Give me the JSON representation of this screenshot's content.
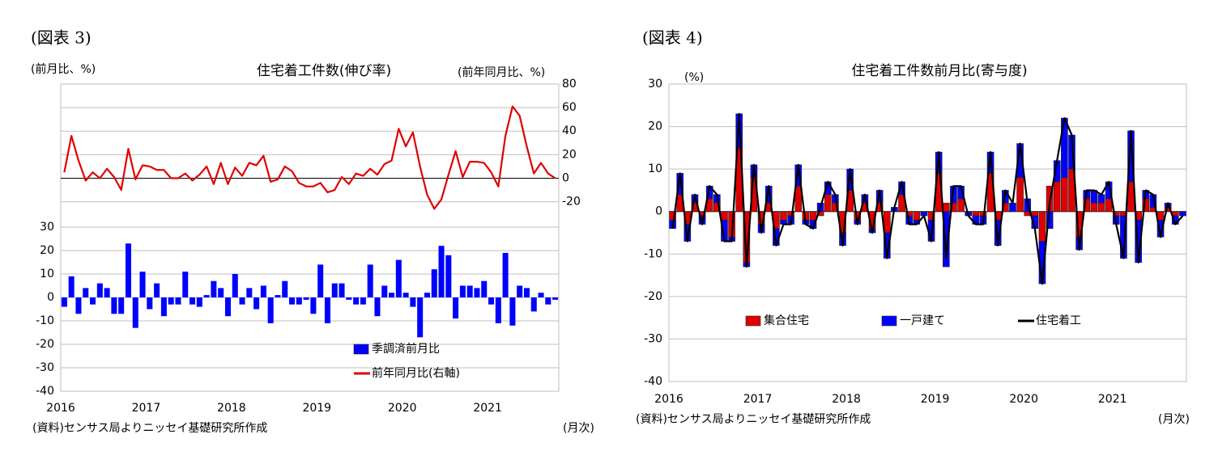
{
  "chart_data": [
    {
      "type": "bar",
      "figure_label": "(図表 3)",
      "title": "住宅着工件数(伸び率)",
      "ylabel": "(前月比、%)",
      "y2label": "(前年同月比、%)",
      "source": "(資料)センサス局よりニッセイ基礎研究所作成",
      "xunit": "(月次)",
      "categories": [
        "2016",
        null,
        null,
        null,
        null,
        null,
        null,
        null,
        null,
        null,
        null,
        null,
        "2017",
        null,
        null,
        null,
        null,
        null,
        null,
        null,
        null,
        null,
        null,
        null,
        "2018",
        null,
        null,
        null,
        null,
        null,
        null,
        null,
        null,
        null,
        null,
        null,
        "2019",
        null,
        null,
        null,
        null,
        null,
        null,
        null,
        null,
        null,
        null,
        null,
        "2020",
        null,
        null,
        null,
        null,
        null,
        null,
        null,
        null,
        null,
        null,
        null,
        "2021",
        null,
        null,
        null,
        null,
        null,
        null,
        null,
        null,
        null
      ],
      "ylim": [
        -40,
        91
      ],
      "yticks": [
        -40,
        -30,
        -20,
        -10,
        0,
        10,
        20,
        30
      ],
      "y2lim": [
        -181,
        80
      ],
      "y2ticks": [
        -20,
        0,
        20,
        40,
        60,
        80
      ],
      "grid": true,
      "zero_line": "y2",
      "legend": "lower right",
      "series": [
        {
          "name": "季調済前月比",
          "type": "bar",
          "color": "#0000ff",
          "values": [
            -4,
            9,
            -7,
            4,
            -3,
            6,
            4,
            -7,
            -7,
            23,
            -13,
            11,
            -5,
            6,
            -8,
            -3,
            -3,
            11,
            -3,
            -4,
            1,
            7,
            4,
            -8,
            10,
            -3,
            4,
            -5,
            5,
            -11,
            1,
            7,
            -3,
            -3,
            -1,
            -7,
            14,
            -11,
            6,
            6,
            -1,
            -3,
            -3,
            14,
            -8,
            5,
            2,
            16,
            2,
            -4,
            -17,
            2,
            12,
            22,
            18,
            -9,
            5,
            5,
            4,
            7,
            -3,
            -11,
            19,
            -12,
            5,
            4,
            -6,
            2,
            -3,
            -1
          ]
        },
        {
          "name": "前年同月比(右軸)",
          "type": "line",
          "axis": "y2",
          "color": "#e00000",
          "values": [
            5,
            36,
            15,
            -2,
            5,
            0,
            8,
            1,
            -10,
            25,
            -1,
            11,
            10,
            7,
            7,
            0,
            0,
            4,
            -2,
            3,
            10,
            -5,
            13,
            -5,
            9,
            2,
            13,
            11,
            19,
            -3,
            -1,
            10,
            6,
            -4,
            -7,
            -7,
            -4,
            -12,
            -10,
            1,
            -5,
            4,
            2,
            8,
            3,
            12,
            15,
            42,
            27,
            39,
            10,
            -14,
            -26,
            -18,
            3,
            23,
            1,
            14,
            14,
            13,
            5,
            -7,
            36,
            61,
            53,
            27,
            4,
            13,
            4,
            0
          ]
        }
      ]
    },
    {
      "type": "bar",
      "figure_label": "(図表 4)",
      "title": "住宅着工件数前月比(寄与度)",
      "ylabel": "(%)",
      "source": "(資料)センサス局よりニッセイ基礎研究所作成",
      "xunit": "(月次)",
      "categories": [
        "2016",
        null,
        null,
        null,
        null,
        null,
        null,
        null,
        null,
        null,
        null,
        null,
        "2017",
        null,
        null,
        null,
        null,
        null,
        null,
        null,
        null,
        null,
        null,
        null,
        "2018",
        null,
        null,
        null,
        null,
        null,
        null,
        null,
        null,
        null,
        null,
        null,
        "2019",
        null,
        null,
        null,
        null,
        null,
        null,
        null,
        null,
        null,
        null,
        null,
        "2020",
        null,
        null,
        null,
        null,
        null,
        null,
        null,
        null,
        null,
        null,
        null,
        "2021",
        null,
        null,
        null,
        null,
        null,
        null,
        null,
        null,
        null
      ],
      "ylim": [
        -40,
        30
      ],
      "yticks": [
        -40,
        -30,
        -20,
        -10,
        0,
        10,
        20,
        30
      ],
      "grid": true,
      "zero_line": "y",
      "stacked": true,
      "legend": "lower center",
      "series": [
        {
          "name": "集合住宅",
          "type": "bar",
          "color": "#e00000",
          "values": [
            -2,
            4,
            -3,
            2,
            -1,
            3,
            2,
            -2,
            -6,
            15,
            -12,
            8,
            -3,
            2,
            -4,
            -2,
            -1,
            6,
            -2,
            -2,
            -1,
            4,
            2,
            -5,
            5,
            -2,
            2,
            -4,
            2,
            -5,
            0,
            4,
            -1,
            -2,
            0,
            -2,
            9,
            2,
            2,
            3,
            0,
            -1,
            -1,
            9,
            -2,
            2,
            0,
            8,
            -1,
            -1,
            -7,
            6,
            7,
            8,
            10,
            -6,
            3,
            2,
            2,
            3,
            -1,
            -1,
            7,
            -2,
            3,
            1,
            -2,
            1,
            -1,
            0
          ]
        },
        {
          "name": "一戸建て",
          "type": "bar",
          "color": "#0000ff",
          "values": [
            -2,
            5,
            -4,
            2,
            -2,
            3,
            2,
            -5,
            -1,
            8,
            -1,
            3,
            -2,
            4,
            -4,
            -1,
            -2,
            5,
            -1,
            -2,
            2,
            3,
            2,
            -3,
            5,
            -1,
            2,
            -1,
            3,
            -6,
            1,
            3,
            -2,
            -1,
            -1,
            -5,
            5,
            -13,
            4,
            3,
            -1,
            -2,
            -2,
            5,
            -6,
            3,
            2,
            8,
            3,
            -3,
            -10,
            -4,
            5,
            14,
            8,
            -3,
            2,
            3,
            2,
            4,
            -2,
            -10,
            12,
            -10,
            2,
            3,
            -4,
            1,
            -2,
            -1
          ]
        },
        {
          "name": "住宅着工",
          "type": "line",
          "color": "#000000",
          "values": [
            -4,
            9,
            -7,
            4,
            -3,
            6,
            4,
            -7,
            -7,
            23,
            -13,
            11,
            -5,
            6,
            -8,
            -3,
            -3,
            11,
            -3,
            -4,
            1,
            7,
            4,
            -8,
            10,
            -3,
            4,
            -5,
            5,
            -11,
            1,
            7,
            -3,
            -3,
            -1,
            -7,
            14,
            -11,
            6,
            6,
            -1,
            -3,
            -3,
            14,
            -8,
            5,
            2,
            16,
            2,
            -4,
            -17,
            2,
            12,
            22,
            18,
            -9,
            5,
            5,
            4,
            7,
            -3,
            -11,
            19,
            -12,
            5,
            4,
            -6,
            2,
            -3,
            -1
          ]
        }
      ]
    }
  ]
}
